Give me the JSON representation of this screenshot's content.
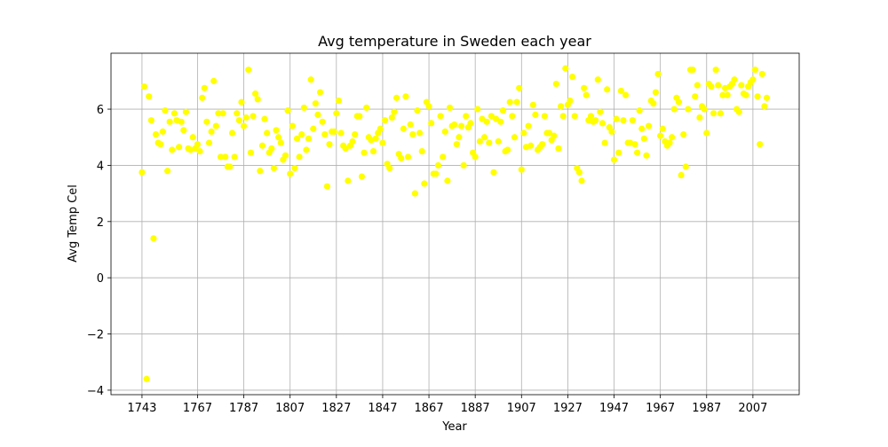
{
  "chart_data": {
    "type": "scatter",
    "title": "Avg temperature in Sweden each year",
    "x_label": "Year",
    "y_label": "Avg Temp Cel",
    "color": "#ffff00",
    "grid": true,
    "x": [
      1743,
      1744,
      1745,
      1746,
      1747,
      1748,
      1749,
      1750,
      1751,
      1752,
      1753,
      1754,
      1755,
      1756,
      1757,
      1758,
      1759,
      1760,
      1761,
      1762,
      1763,
      1764,
      1765,
      1766,
      1767,
      1768,
      1769,
      1770,
      1771,
      1772,
      1773,
      1774,
      1775,
      1776,
      1777,
      1778,
      1779,
      1780,
      1781,
      1782,
      1783,
      1784,
      1785,
      1786,
      1787,
      1788,
      1789,
      1790,
      1791,
      1792,
      1793,
      1794,
      1795,
      1796,
      1797,
      1798,
      1799,
      1800,
      1801,
      1802,
      1803,
      1804,
      1805,
      1806,
      1807,
      1808,
      1809,
      1810,
      1811,
      1812,
      1813,
      1814,
      1815,
      1816,
      1817,
      1818,
      1819,
      1820,
      1821,
      1822,
      1823,
      1824,
      1825,
      1826,
      1827,
      1828,
      1829,
      1830,
      1831,
      1832,
      1833,
      1834,
      1835,
      1836,
      1837,
      1838,
      1839,
      1840,
      1841,
      1842,
      1843,
      1844,
      1845,
      1846,
      1847,
      1848,
      1849,
      1850,
      1851,
      1852,
      1853,
      1854,
      1855,
      1856,
      1857,
      1858,
      1859,
      1860,
      1861,
      1862,
      1863,
      1864,
      1865,
      1866,
      1867,
      1868,
      1869,
      1870,
      1871,
      1872,
      1873,
      1874,
      1875,
      1876,
      1877,
      1878,
      1879,
      1880,
      1881,
      1882,
      1883,
      1884,
      1885,
      1886,
      1887,
      1888,
      1889,
      1890,
      1891,
      1892,
      1893,
      1894,
      1895,
      1896,
      1897,
      1898,
      1899,
      1900,
      1901,
      1902,
      1903,
      1904,
      1905,
      1906,
      1907,
      1908,
      1909,
      1910,
      1911,
      1912,
      1913,
      1914,
      1915,
      1916,
      1917,
      1918,
      1919,
      1920,
      1921,
      1922,
      1923,
      1924,
      1925,
      1926,
      1927,
      1928,
      1929,
      1930,
      1931,
      1932,
      1933,
      1934,
      1935,
      1936,
      1937,
      1938,
      1939,
      1940,
      1941,
      1942,
      1943,
      1944,
      1945,
      1946,
      1947,
      1948,
      1949,
      1950,
      1951,
      1952,
      1953,
      1954,
      1955,
      1956,
      1957,
      1958,
      1959,
      1960,
      1961,
      1962,
      1963,
      1964,
      1965,
      1966,
      1967,
      1968,
      1969,
      1970,
      1971,
      1972,
      1973,
      1974,
      1975,
      1976,
      1977,
      1978,
      1979,
      1980,
      1981,
      1982,
      1983,
      1984,
      1985,
      1986,
      1987,
      1988,
      1989,
      1990,
      1991,
      1992,
      1993,
      1994,
      1995,
      1996,
      1997,
      1998,
      1999,
      2000,
      2001,
      2002,
      2003,
      2004,
      2005,
      2006,
      2007,
      2008,
      2009,
      2010,
      2011,
      2012,
      2013
    ],
    "values": [
      3.75,
      6.8,
      -3.6,
      6.45,
      5.6,
      1.4,
      5.1,
      4.8,
      4.75,
      5.2,
      5.95,
      3.8,
      5.55,
      4.55,
      5.85,
      5.6,
      4.65,
      5.55,
      5.25,
      5.9,
      4.6,
      4.55,
      5.0,
      4.6,
      4.75,
      4.5,
      6.4,
      6.75,
      5.55,
      4.8,
      5.2,
      7.0,
      5.4,
      5.85,
      4.3,
      5.85,
      4.3,
      3.95,
      3.95,
      5.15,
      4.3,
      5.85,
      5.6,
      6.25,
      5.4,
      5.7,
      7.4,
      4.45,
      5.75,
      6.55,
      6.35,
      3.8,
      4.7,
      5.65,
      5.15,
      4.45,
      4.6,
      3.9,
      5.25,
      5.0,
      4.8,
      4.2,
      4.35,
      5.95,
      3.7,
      5.4,
      3.9,
      4.95,
      4.3,
      5.1,
      6.05,
      4.55,
      4.95,
      7.05,
      5.3,
      6.2,
      5.8,
      6.6,
      5.55,
      5.1,
      3.25,
      4.75,
      5.2,
      5.2,
      5.85,
      6.3,
      5.15,
      4.7,
      4.6,
      3.45,
      4.7,
      4.85,
      5.1,
      5.75,
      5.75,
      3.6,
      4.45,
      6.05,
      5.0,
      4.9,
      4.5,
      4.95,
      5.15,
      5.3,
      4.8,
      5.6,
      4.05,
      3.9,
      5.7,
      5.9,
      6.4,
      4.4,
      4.25,
      5.3,
      6.45,
      4.3,
      5.45,
      5.1,
      3.0,
      5.95,
      5.15,
      4.5,
      3.35,
      6.25,
      6.1,
      5.5,
      3.7,
      3.7,
      4.0,
      5.75,
      4.3,
      5.2,
      3.45,
      6.05,
      5.4,
      5.45,
      4.75,
      5.0,
      5.4,
      4.0,
      5.75,
      5.35,
      5.5,
      4.45,
      4.3,
      6.0,
      4.85,
      5.65,
      5.0,
      5.55,
      4.8,
      5.75,
      3.75,
      5.65,
      4.85,
      5.55,
      5.95,
      4.5,
      4.55,
      6.25,
      5.75,
      5.0,
      6.25,
      6.75,
      3.85,
      5.15,
      4.65,
      5.4,
      4.7,
      6.15,
      5.8,
      4.55,
      4.65,
      4.75,
      5.75,
      5.15,
      5.15,
      4.9,
      5.05,
      6.9,
      4.6,
      6.1,
      5.75,
      7.45,
      6.15,
      6.3,
      7.15,
      5.75,
      3.9,
      3.75,
      3.45,
      6.75,
      6.5,
      5.6,
      5.75,
      5.55,
      5.6,
      7.05,
      5.9,
      5.5,
      4.8,
      6.7,
      5.35,
      5.2,
      4.2,
      5.65,
      4.45,
      6.65,
      5.6,
      6.5,
      4.8,
      4.8,
      5.6,
      4.75,
      4.45,
      5.95,
      5.3,
      4.95,
      4.35,
      5.4,
      6.3,
      6.2,
      6.6,
      7.25,
      5.05,
      5.3,
      4.85,
      4.7,
      4.8,
      5.0,
      6.0,
      6.4,
      6.25,
      3.65,
      5.1,
      3.95,
      6.0,
      7.4,
      7.4,
      6.45,
      6.85,
      5.7,
      6.1,
      6.0,
      5.15,
      6.9,
      6.8,
      5.85,
      7.4,
      6.85,
      5.85,
      6.5,
      6.75,
      6.5,
      6.8,
      6.9,
      7.05,
      6.0,
      5.9,
      6.85,
      6.55,
      6.5,
      6.8,
      6.95,
      7.05,
      7.4,
      6.45,
      4.75,
      7.25,
      6.1,
      6.4
    ],
    "xlim": [
      1729.6,
      2027
    ],
    "ylim": [
      -4.16,
      7.99
    ],
    "xticks": [
      1743,
      1767,
      1787,
      1807,
      1827,
      1847,
      1867,
      1887,
      1907,
      1927,
      1947,
      1967,
      1987,
      2007
    ],
    "yticks": [
      {
        "value": -4,
        "label": "−4"
      },
      {
        "value": -2,
        "label": "−2"
      },
      0,
      2,
      4,
      6
    ]
  }
}
